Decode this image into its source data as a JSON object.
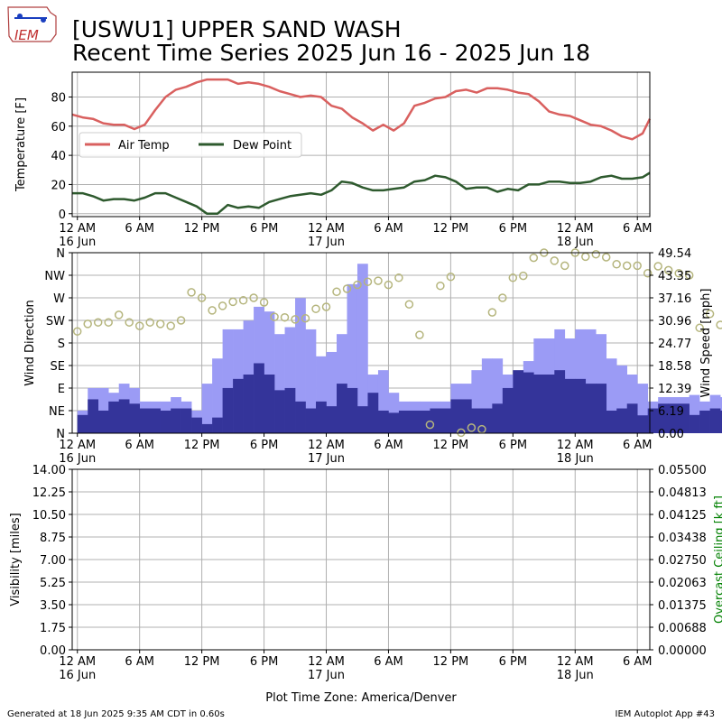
{
  "header": {
    "title_line1": "[USWU1] UPPER SAND WASH",
    "title_line2": "Recent Time Series 2025 Jun 16 - 2025 Jun 18",
    "logo_text": "IEM"
  },
  "footer": {
    "generated": "Generated at 18 Jun 2025 9:35 AM CDT in 0.60s",
    "app": "IEM Autoplot App #43",
    "timezone": "Plot Time Zone: America/Denver"
  },
  "colors": {
    "air_temp": "#d9605f",
    "dew_point": "#2e5a2e",
    "wind_speed": "#9b9bf5",
    "wind_gust_bar": "#34349a",
    "wind_dir": "#b5b57d",
    "ceiling_label": "#008000",
    "grid": "#b0b0b0"
  },
  "time_axis": {
    "tick_hours": [
      0,
      6,
      12,
      18,
      24,
      30,
      36,
      42,
      48,
      54
    ],
    "tick_labels": [
      "12 AM",
      "6 AM",
      "12 PM",
      "6 PM",
      "12 AM",
      "6 AM",
      "12 PM",
      "6 PM",
      "12 AM",
      "6 AM"
    ],
    "date_labels": [
      "16 Jun",
      "",
      "",
      "",
      "17 Jun",
      "",
      "",
      "",
      "18 Jun",
      ""
    ],
    "range_hours": [
      -0.5,
      55.2
    ]
  },
  "chart_data": [
    {
      "type": "line",
      "ylabel": "Temperature [F]",
      "ylim": [
        -2,
        97
      ],
      "yticks": [
        0,
        20,
        40,
        60,
        80
      ],
      "legend": "center-left",
      "grid": true,
      "x_hours": [
        -0.5,
        0.5,
        1.5,
        2.5,
        3.5,
        4.5,
        5.5,
        6.5,
        7.5,
        8.5,
        9.5,
        10.5,
        11.5,
        12.5,
        13.5,
        14.5,
        15.5,
        16.5,
        17.5,
        18.5,
        19.5,
        20.5,
        21.5,
        22.5,
        23.5,
        24.5,
        25.5,
        26.5,
        27.5,
        28.5,
        29.5,
        30.5,
        31.5,
        32.5,
        33.5,
        34.5,
        35.5,
        36.5,
        37.5,
        38.5,
        39.5,
        40.5,
        41.5,
        42.5,
        43.5,
        44.5,
        45.5,
        46.5,
        47.5,
        48.5,
        49.5,
        50.5,
        51.5,
        52.5,
        53.5,
        54.5,
        55.2
      ],
      "series": [
        {
          "name": "Air Temp",
          "values": [
            68,
            66,
            65,
            62,
            61,
            61,
            58,
            61,
            71,
            80,
            85,
            87,
            90,
            92,
            92,
            92,
            89,
            90,
            89,
            87,
            84,
            82,
            80,
            81,
            80,
            74,
            72,
            66,
            62,
            57,
            61,
            57,
            62,
            74,
            76,
            79,
            80,
            84,
            85,
            83,
            86,
            86,
            85,
            83,
            82,
            77,
            70,
            68,
            67,
            64,
            61,
            60,
            57,
            53,
            51,
            55,
            65
          ]
        },
        {
          "name": "Dew Point",
          "values": [
            14,
            14,
            12,
            9,
            10,
            10,
            9,
            11,
            14,
            14,
            11,
            8,
            5,
            0,
            0,
            6,
            4,
            5,
            4,
            8,
            10,
            12,
            13,
            14,
            13,
            16,
            22,
            21,
            18,
            16,
            16,
            17,
            18,
            22,
            23,
            26,
            25,
            22,
            17,
            18,
            18,
            15,
            17,
            16,
            20,
            20,
            22,
            22,
            21,
            21,
            22,
            25,
            26,
            24,
            24,
            25,
            28
          ]
        }
      ]
    },
    {
      "type": "bar",
      "ylabel": "Wind Direction",
      "y2label": "Wind Speed [mph]",
      "yticks_dir": [
        "N",
        "NE",
        "E",
        "SE",
        "S",
        "SW",
        "W",
        "NW",
        "N"
      ],
      "y2ticks": [
        "0.00",
        "6.19",
        "12.39",
        "18.58",
        "24.77",
        "30.96",
        "37.16",
        "43.35",
        "49.54"
      ],
      "ylim_speed": [
        0,
        49.54
      ],
      "grid": true,
      "bar_start_hour": 0,
      "bar_width_hours": 1,
      "series": [
        {
          "name": "",
          "values": [
            6.2,
            12.4,
            12.4,
            11.1,
            13.6,
            12.4,
            8.7,
            8.7,
            8.7,
            9.9,
            8.7,
            6.2,
            13.6,
            20.5,
            28.5,
            28.5,
            30.9,
            34.7,
            33.4,
            27.2,
            29.1,
            37.1,
            28.5,
            21.1,
            22.3,
            27.2,
            40.9,
            46.5,
            16.1,
            17.3,
            11.1,
            8.7,
            8.7,
            8.7,
            8.7,
            8.7,
            13.6,
            13.6,
            17.3,
            20.5,
            20.5,
            16.1,
            12.4,
            19.8,
            26.0,
            26.0,
            28.5,
            26.0,
            28.5,
            28.5,
            27.2,
            20.5,
            18.6,
            16.1,
            13.6,
            8.7,
            9.9,
            9.9,
            9.9,
            10.5,
            8.7,
            10.5,
            9.9
          ]
        },
        {
          "name": "",
          "values": [
            5.0,
            9.3,
            6.2,
            8.7,
            9.3,
            8.1,
            6.8,
            6.8,
            6.2,
            6.8,
            6.8,
            4.3,
            2.5,
            4.3,
            12.4,
            14.9,
            16.1,
            19.2,
            16.1,
            11.8,
            12.4,
            8.7,
            6.8,
            8.7,
            7.4,
            13.6,
            12.4,
            7.4,
            11.1,
            6.2,
            5.6,
            6.2,
            6.2,
            6.2,
            6.8,
            6.8,
            9.3,
            9.3,
            6.8,
            6.8,
            8.1,
            12.4,
            17.3,
            16.7,
            16.1,
            16.1,
            17.3,
            14.9,
            14.9,
            13.6,
            13.6,
            6.2,
            6.8,
            8.1,
            4.9,
            6.8,
            8.1,
            8.1,
            8.1,
            5.0,
            6.2,
            6.8,
            6.2
          ]
        },
        {
          "name": "",
          "values": [
            203,
            218,
            221,
            221,
            236,
            221,
            214,
            221,
            218,
            214,
            225,
            281,
            270,
            245,
            254,
            262,
            265,
            270,
            261,
            232,
            231,
            227,
            229,
            248,
            252,
            282,
            288,
            296,
            302,
            304,
            296,
            310,
            257,
            196,
            17,
            294,
            312,
            1,
            11,
            8,
            241,
            270,
            310,
            314,
            350,
            360,
            344,
            334,
            360,
            352,
            357,
            351,
            337,
            334,
            334,
            319,
            333,
            325,
            319,
            315,
            210,
            238,
            216
          ]
        }
      ]
    },
    {
      "type": "line",
      "ylabel": "Visibility [miles]",
      "y2label": "Overcast Ceiling [k ft]",
      "yticks": [
        "0.00",
        "1.75",
        "3.50",
        "5.25",
        "7.00",
        "8.75",
        "10.50",
        "12.25",
        "14.00"
      ],
      "y2ticks": [
        "0.00000",
        "0.00688",
        "0.01375",
        "0.02063",
        "0.02750",
        "0.03438",
        "0.04125",
        "0.04813",
        "0.05500"
      ],
      "ylim": [
        0,
        14
      ],
      "y2lim": [
        0,
        0.055
      ],
      "grid": true,
      "series": []
    }
  ]
}
